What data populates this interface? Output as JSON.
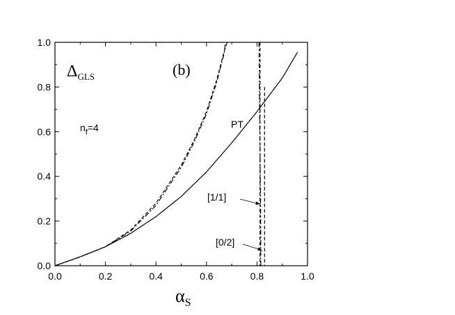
{
  "chart_data": {
    "type": "line",
    "title": "",
    "xlabel": "α",
    "xlabel_sub": "S",
    "ylabel": "",
    "xlim": [
      0,
      1.0
    ],
    "ylim": [
      0,
      1.0
    ],
    "x_ticks": [
      "0.0",
      "0.2",
      "0.4",
      "0.6",
      "0.8",
      "1.0"
    ],
    "y_ticks": [
      "0.0",
      "0.2",
      "0.4",
      "0.6",
      "0.8",
      "1.0"
    ],
    "grid": false,
    "legend": "none",
    "series": [
      {
        "style": "solid",
        "points": [
          [
            0,
            0
          ],
          [
            0.1,
            0.04
          ],
          [
            0.2,
            0.085
          ],
          [
            0.3,
            0.145
          ],
          [
            0.4,
            0.22
          ],
          [
            0.5,
            0.31
          ],
          [
            0.6,
            0.42
          ],
          [
            0.7,
            0.55
          ],
          [
            0.8,
            0.69
          ],
          [
            0.9,
            0.84
          ],
          [
            0.96,
            0.955
          ]
        ]
      },
      {
        "style": "dashed",
        "points": [
          [
            0,
            0
          ],
          [
            0.1,
            0.04
          ],
          [
            0.2,
            0.085
          ],
          [
            0.3,
            0.16
          ],
          [
            0.4,
            0.28
          ],
          [
            0.5,
            0.45
          ],
          [
            0.55,
            0.56
          ],
          [
            0.6,
            0.69
          ],
          [
            0.64,
            0.83
          ],
          [
            0.67,
            0.96
          ],
          [
            0.682,
            1.0
          ]
        ]
      },
      {
        "style": "dashdot",
        "points": [
          [
            0,
            0
          ],
          [
            0.1,
            0.04
          ],
          [
            0.2,
            0.085
          ],
          [
            0.3,
            0.155
          ],
          [
            0.4,
            0.27
          ],
          [
            0.5,
            0.44
          ],
          [
            0.55,
            0.55
          ],
          [
            0.6,
            0.68
          ],
          [
            0.64,
            0.82
          ],
          [
            0.67,
            0.95
          ],
          [
            0.675,
            1.0
          ]
        ]
      },
      {
        "style": "dashdot",
        "points": [
          [
            0.808,
            1.0
          ],
          [
            0.811,
            0.6
          ],
          [
            0.814,
            0.3
          ],
          [
            0.815,
            0.1
          ],
          [
            0.815,
            0.0
          ]
        ]
      },
      {
        "style": "dashed",
        "points": [
          [
            0.812,
            1.0
          ],
          [
            0.812,
            0.0
          ]
        ]
      },
      {
        "style": "dashed",
        "points": [
          [
            0.83,
            0.8
          ],
          [
            0.83,
            0.0
          ]
        ]
      }
    ],
    "annotations": {
      "delta_symbol": "Δ",
      "delta_sub": "GLS",
      "panel": "(b)",
      "nf_main": "n",
      "nf_sub": "f",
      "nf_value": "=4",
      "pt": "PT",
      "label_11": "[1/1]",
      "label_02": "[0/2]"
    }
  }
}
